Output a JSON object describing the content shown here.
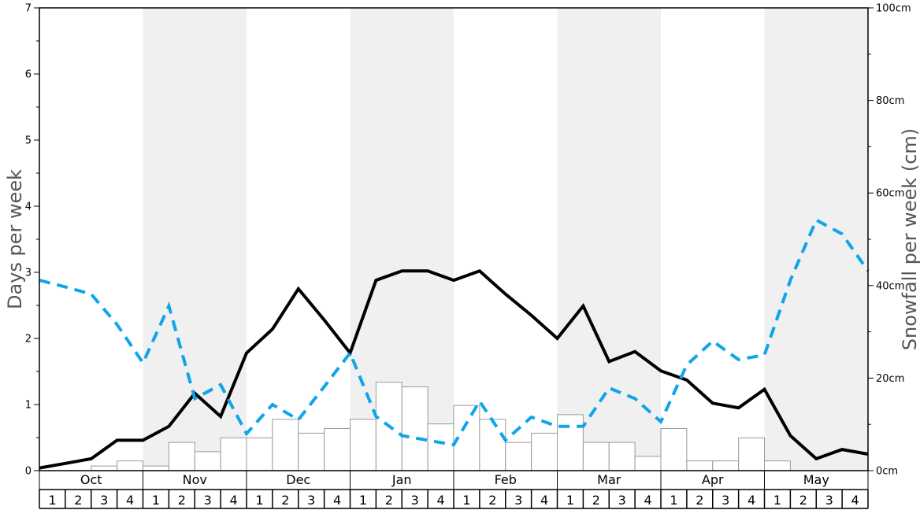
{
  "chart_data": {
    "type": "bar",
    "ylabel": "Days per week",
    "y2label": "Snowfall per week (cm)",
    "ylim": [
      0,
      7
    ],
    "y2lim": [
      0,
      100
    ],
    "y_ticks": [
      "0",
      "1",
      "2",
      "3",
      "4",
      "5",
      "6",
      "7"
    ],
    "y2_ticks": [
      "0cm",
      "20cm",
      "40cm",
      "60cm",
      "80cm",
      "100cm"
    ],
    "months": [
      "Oct",
      "Nov",
      "Dec",
      "Jan",
      "Feb",
      "Mar",
      "Apr",
      "May"
    ],
    "weeks": [
      "1",
      "2",
      "3",
      "4"
    ],
    "colors": {
      "shade": "#f0f0f0",
      "bar_fill": "#ffffff",
      "bar_stroke": "#999999",
      "solid_line": "#000000",
      "dashed_line": "#0ea5e9"
    },
    "series": [
      {
        "kind": "bar",
        "axis": "right",
        "values": [
          0,
          0,
          1.0,
          2.1,
          1.0,
          6.1,
          4.1,
          7.1,
          7.1,
          11.1,
          8.1,
          9.1,
          11.1,
          19.1,
          18.1,
          10.1,
          14.1,
          11.1,
          6.1,
          8.1,
          12.1,
          6.1,
          6.1,
          3.1,
          9.1,
          2.1,
          2.1,
          7.1,
          2.1,
          0,
          0,
          0
        ]
      },
      {
        "kind": "line",
        "axis": "left",
        "style": "solid",
        "values": [
          0.04,
          0.11,
          0.18,
          0.46,
          0.46,
          0.67,
          1.17,
          0.82,
          1.78,
          2.14,
          2.75,
          2.28,
          1.78,
          2.88,
          3.02,
          3.02,
          2.88,
          3.02,
          2.67,
          2.35,
          2.0,
          2.49,
          1.65,
          1.8,
          1.51,
          1.37,
          1.02,
          0.95,
          1.23,
          0.53,
          0.18,
          0.32,
          0.25
        ]
      },
      {
        "kind": "line",
        "axis": "left",
        "style": "dashed",
        "values": [
          2.88,
          2.78,
          2.67,
          2.21,
          1.63,
          2.49,
          1.09,
          1.3,
          0.56,
          1.0,
          0.77,
          1.27,
          1.78,
          0.82,
          0.53,
          0.46,
          0.39,
          1.05,
          0.46,
          0.81,
          0.67,
          0.67,
          1.25,
          1.09,
          0.74,
          1.6,
          1.96,
          1.68,
          1.75,
          2.88,
          3.79,
          3.58,
          3.02
        ]
      }
    ]
  }
}
